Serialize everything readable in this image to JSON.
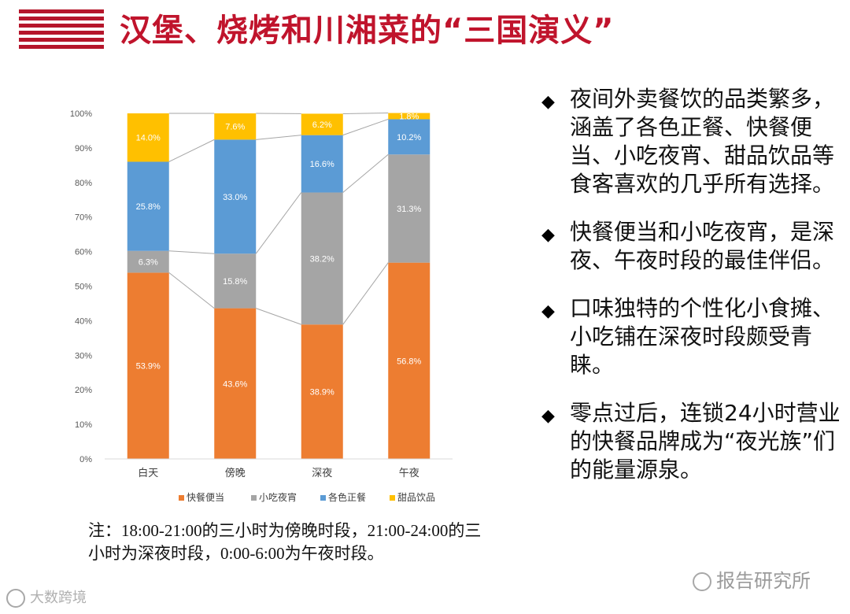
{
  "header": {
    "title": "汉堡、烧烤和川湘菜的“三国演义”"
  },
  "chart_data": {
    "type": "bar",
    "stacked": true,
    "normalized": true,
    "categories": [
      "白天",
      "傍晚",
      "深夜",
      "午夜"
    ],
    "series": [
      {
        "name": "快餐便当",
        "color": "#ed7d31",
        "values": [
          53.9,
          43.6,
          38.9,
          56.8
        ],
        "labels": [
          "53.9%",
          "43.6%",
          "38.9%",
          "56.8%"
        ]
      },
      {
        "name": "小吃夜宵",
        "color": "#a5a5a5",
        "values": [
          6.3,
          15.8,
          38.2,
          31.3
        ],
        "labels": [
          "6.3%",
          "15.8%",
          "38.2%",
          "31.3%"
        ]
      },
      {
        "name": "各色正餐",
        "color": "#5b9bd5",
        "values": [
          25.8,
          33.0,
          16.6,
          10.2
        ],
        "labels": [
          "25.8%",
          "33.0%",
          "16.6%",
          "10.2%"
        ]
      },
      {
        "name": "甜品饮品",
        "color": "#ffc000",
        "values": [
          14.0,
          7.6,
          6.2,
          1.8
        ],
        "labels": [
          "14.0%",
          "7.6%",
          "6.2%",
          "1.8%"
        ]
      }
    ],
    "yticks": [
      "0%",
      "10%",
      "20%",
      "30%",
      "40%",
      "50%",
      "60%",
      "70%",
      "80%",
      "90%",
      "100%"
    ],
    "ylim": [
      0,
      100
    ],
    "series_lines": true,
    "legend": "bottom",
    "grid": false
  },
  "note": "注：18:00-21:00的三小时为傍晚时段，21:00-24:00的三小时为深夜时段，0:00-6:00为午夜时段。",
  "bullets": [
    "夜间外卖餐饮的品类繁多，涵盖了各色正餐、快餐便当、小吃夜宵、甜品饮品等食客喜欢的几乎所有选择。",
    "快餐便当和小吃夜宵，是深夜、午夜时段的最佳伴侣。",
    "口味独特的个性化小食摊、小吃铺在深夜时段颇受青睐。",
    "零点过后，连锁24小时营业的快餐品牌成为“夜光族”们的能量源泉。"
  ],
  "bullet_symbol": "◆",
  "watermarks": {
    "left": "大数跨境",
    "right": "报告研究所"
  }
}
